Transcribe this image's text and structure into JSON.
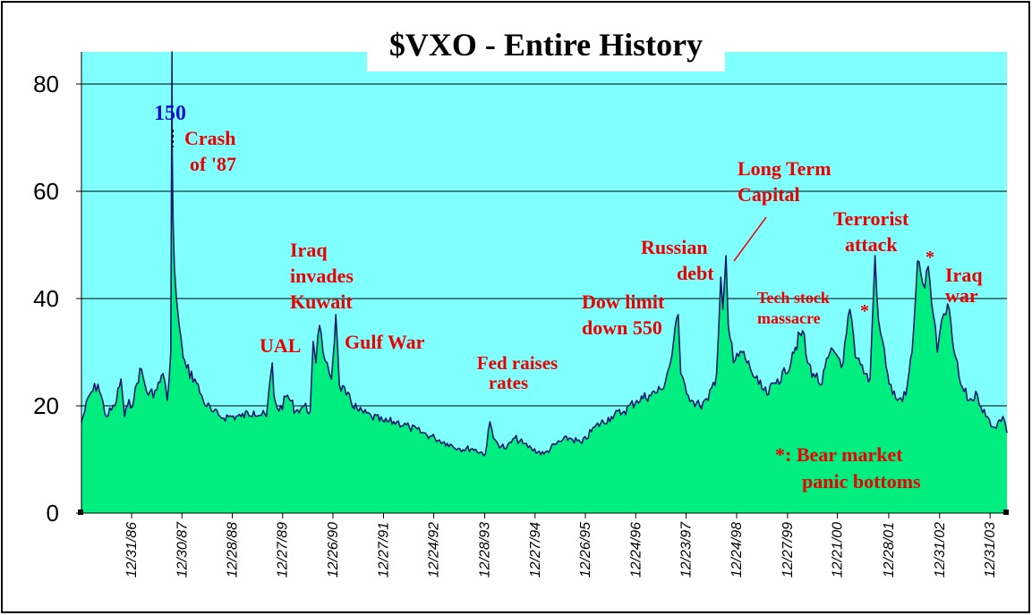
{
  "chart_data": {
    "type": "area",
    "title": "$VXO - Entire History",
    "ylim": [
      0,
      86
    ],
    "yticks": [
      "0",
      "20",
      "40",
      "60",
      "80"
    ],
    "ytick_values": [
      0,
      20,
      40,
      60,
      80
    ],
    "xlim": [
      "1986-01-02",
      "2004-05-01"
    ],
    "xticks": [
      "12/31/86",
      "12/30/87",
      "12/28/88",
      "12/27/89",
      "12/26/90",
      "12/27/91",
      "12/24/92",
      "12/28/93",
      "12/27/94",
      "12/26/95",
      "12/24/96",
      "12/23/97",
      "12/24/98",
      "12/27/99",
      "12/21/00",
      "12/28/01",
      "12/31/02",
      "12/31/03"
    ],
    "xtick_dates": [
      "1986-12-31",
      "1987-12-30",
      "1988-12-28",
      "1989-12-27",
      "1990-12-26",
      "1991-12-27",
      "1992-12-24",
      "1993-12-28",
      "1994-12-27",
      "1995-12-26",
      "1996-12-24",
      "1997-12-23",
      "1998-12-24",
      "1999-12-27",
      "2000-12-21",
      "2001-12-28",
      "2002-12-31",
      "2003-12-31"
    ],
    "grid": true,
    "colors": {
      "plot_bg": "#80ffff",
      "fill": "#00ee80",
      "line": "#1a1a6e",
      "annotation": "#ee0000",
      "annotation_blue": "#1010d0"
    },
    "series": [
      {
        "x": [
          "1986-01-02",
          "1986-03-01",
          "1986-05-01",
          "1986-07-01",
          "1986-09-01",
          "1986-10-15",
          "1986-11-10",
          "1986-12-01",
          "1987-01-15",
          "1987-03-01",
          "1987-05-01",
          "1987-07-01",
          "1987-08-15",
          "1987-09-15",
          "1987-10-10",
          "1987-10-19",
          "1987-10-20",
          "1987-10-26",
          "1987-11-05",
          "1987-11-20",
          "1987-12-10",
          "1988-01-08",
          "1988-02-01",
          "1988-04-01",
          "1988-06-01",
          "1988-08-01",
          "1988-10-01",
          "1988-12-01",
          "1989-03-01",
          "1989-06-01",
          "1989-09-01",
          "1989-10-13",
          "1989-10-25",
          "1989-12-01",
          "1990-02-01",
          "1990-04-01",
          "1990-06-01",
          "1990-07-15",
          "1990-08-05",
          "1990-08-25",
          "1990-09-20",
          "1990-10-15",
          "1990-11-15",
          "1990-12-15",
          "1991-01-16",
          "1991-02-10",
          "1991-04-01",
          "1991-07-01",
          "1991-10-01",
          "1992-01-01",
          "1992-04-01",
          "1992-07-01",
          "1992-10-01",
          "1993-01-01",
          "1993-04-01",
          "1993-07-01",
          "1993-10-01",
          "1994-01-01",
          "1994-02-04",
          "1994-03-01",
          "1994-04-01",
          "1994-06-01",
          "1994-08-01",
          "1994-10-01",
          "1994-12-01",
          "1995-03-01",
          "1995-06-01",
          "1995-09-01",
          "1995-12-01",
          "1996-03-01",
          "1996-07-01",
          "1996-10-01",
          "1997-01-01",
          "1997-04-01",
          "1997-07-01",
          "1997-09-01",
          "1997-10-27",
          "1997-11-15",
          "1997-12-15",
          "1998-02-01",
          "1998-04-01",
          "1998-06-01",
          "1998-08-01",
          "1998-08-31",
          "1998-09-15",
          "1998-10-08",
          "1998-10-25",
          "1998-12-01",
          "1999-02-01",
          "1999-04-01",
          "1999-06-01",
          "1999-08-01",
          "1999-10-15",
          "1999-12-15",
          "2000-02-01",
          "2000-04-14",
          "2000-05-20",
          "2000-07-01",
          "2000-09-01",
          "2000-10-15",
          "2000-12-01",
          "2001-02-01",
          "2001-03-22",
          "2001-05-01",
          "2001-07-01",
          "2001-08-15",
          "2001-09-20",
          "2001-10-15",
          "2001-11-15",
          "2002-01-01",
          "2002-03-01",
          "2002-05-01",
          "2002-06-15",
          "2002-07-24",
          "2002-08-15",
          "2002-09-15",
          "2002-10-10",
          "2002-11-15",
          "2002-12-15",
          "2003-01-15",
          "2003-02-15",
          "2003-03-11",
          "2003-04-15",
          "2003-06-01",
          "2003-08-01",
          "2003-10-01",
          "2003-12-01",
          "2004-02-01",
          "2004-04-01",
          "2004-05-01"
        ],
        "values": [
          17,
          22,
          24,
          18,
          20,
          25,
          18,
          20,
          21,
          27,
          22,
          23,
          26,
          21,
          30,
          150,
          69,
          55,
          46,
          40,
          35,
          29,
          27,
          25,
          21,
          19,
          18,
          18,
          18,
          19,
          18,
          28,
          22,
          19,
          22,
          19,
          20,
          19,
          32,
          28,
          35,
          30,
          28,
          25,
          37,
          24,
          22,
          19,
          18,
          17,
          17,
          16,
          15,
          14,
          13,
          12,
          12,
          11,
          17,
          14,
          13,
          12,
          14,
          13,
          12,
          11,
          13,
          14,
          13,
          16,
          18,
          19,
          21,
          22,
          23,
          28,
          37,
          26,
          24,
          21,
          20,
          21,
          26,
          44,
          38,
          48,
          35,
          28,
          30,
          27,
          24,
          22,
          25,
          26,
          30,
          34,
          28,
          26,
          24,
          29,
          30,
          28,
          38,
          29,
          26,
          25,
          48,
          36,
          32,
          24,
          21,
          22,
          30,
          47,
          45,
          42,
          46,
          37,
          30,
          36,
          37,
          38,
          30,
          24,
          21,
          22,
          18,
          16,
          18,
          15
        ]
      }
    ],
    "annotations": {
      "peak": "150",
      "crash_1": "Crash",
      "crash_2": "of '87",
      "iraq_1": "Iraq",
      "iraq_2": "invades",
      "iraq_3": "Kuwait",
      "ual": "UAL",
      "gulf": "Gulf War",
      "fed_1": "Fed raises",
      "fed_2": "rates",
      "dow_1": "Dow limit",
      "dow_2": "down 550",
      "russian_1": "Russian",
      "russian_2": "debt",
      "ltcm_1": "Long Term",
      "ltcm_2": "Capital",
      "tech_1": "Tech stock",
      "tech_2": "massacre",
      "star_1": "*",
      "terror_1": "Terrorist",
      "terror_2": "attack",
      "star_2": "*",
      "iraqwar_1": "Iraq",
      "iraqwar_2": "war",
      "bear_1": "*: Bear market",
      "bear_2": "panic bottoms"
    }
  }
}
